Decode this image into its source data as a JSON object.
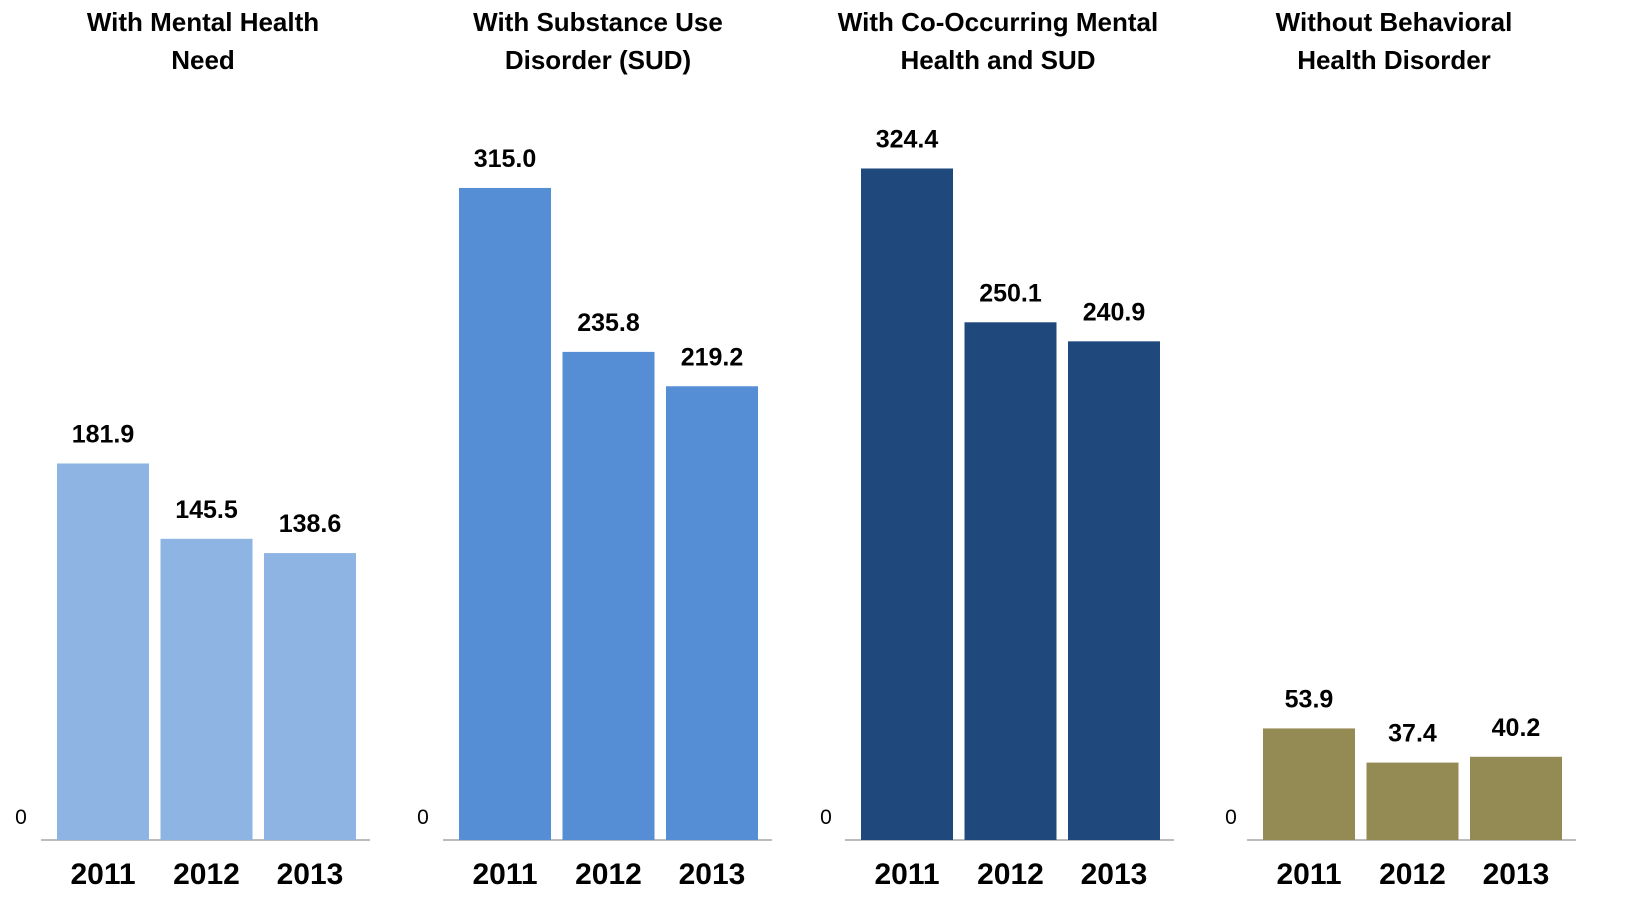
{
  "chart_data": [
    {
      "type": "bar",
      "title": "With Mental Health Need",
      "title_lines": [
        "With Mental Health",
        "Need"
      ],
      "categories": [
        "2011",
        "2012",
        "2013"
      ],
      "values": [
        181.9,
        145.5,
        138.6
      ],
      "value_labels": [
        "181.9",
        "145.5",
        "138.6"
      ],
      "y_tick_label": "0",
      "ylim": [
        0,
        350
      ],
      "color": "#8eb4e3",
      "grid": false
    },
    {
      "type": "bar",
      "title": "With Substance Use Disorder (SUD)",
      "title_lines": [
        "With Substance Use",
        "Disorder (SUD)"
      ],
      "categories": [
        "2011",
        "2012",
        "2013"
      ],
      "values": [
        315.0,
        235.8,
        219.2
      ],
      "value_labels": [
        "315.0",
        "235.8",
        "219.2"
      ],
      "y_tick_label": "0",
      "ylim": [
        0,
        350
      ],
      "color": "#558ed5",
      "grid": false
    },
    {
      "type": "bar",
      "title": "With Co-Occurring Mental Health and SUD",
      "title_lines": [
        "With Co-Occurring Mental",
        "Health and SUD"
      ],
      "categories": [
        "2011",
        "2012",
        "2013"
      ],
      "values": [
        324.4,
        250.1,
        240.9
      ],
      "value_labels": [
        "324.4",
        "250.1",
        "240.9"
      ],
      "y_tick_label": "0",
      "ylim": [
        0,
        350
      ],
      "color": "#1f497d",
      "grid": false
    },
    {
      "type": "bar",
      "title": "Without Behavioral Health Disorder",
      "title_lines": [
        "Without Behavioral",
        "Health Disorder"
      ],
      "categories": [
        "2011",
        "2012",
        "2013"
      ],
      "values": [
        53.9,
        37.4,
        40.2
      ],
      "value_labels": [
        "53.9",
        "37.4",
        "40.2"
      ],
      "y_tick_label": "0",
      "ylim": [
        0,
        350
      ],
      "color": "#948a54",
      "grid": false
    }
  ]
}
